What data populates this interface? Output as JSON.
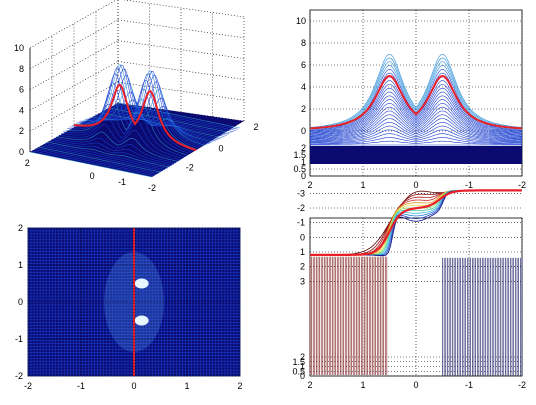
{
  "colors": {
    "surface_dark": "#0a0a70",
    "mesh_line": "#1a3fd0",
    "peak_line": "#2a8fd8",
    "red_curve": "#e8202a",
    "grid": "#000000"
  },
  "chart_data": [
    {
      "type": "surface",
      "panel": "top-left",
      "view": "3d mesh",
      "xlim": [
        -2,
        2
      ],
      "ylim": [
        -2,
        2
      ],
      "zlim": [
        0,
        10
      ],
      "x_ticks": [
        "2",
        "0",
        "-1",
        "-2"
      ],
      "y_ticks": [
        "2",
        "0",
        "-2"
      ],
      "z_ticks": [
        "0",
        "2",
        "4",
        "6",
        "8",
        "10"
      ],
      "peaks_x": [
        -0.5,
        0.5
      ],
      "peak_mesh_height": 7,
      "red_curve_peak": 5,
      "grid": true
    },
    {
      "type": "line",
      "panel": "top-right",
      "view": "side projection",
      "xlim": [
        2,
        -2
      ],
      "x_ticks": [
        "2",
        "1",
        "0",
        "-1",
        "-2"
      ],
      "y_ticks_upper": [
        "0",
        "2",
        "4",
        "6",
        "8",
        "10"
      ],
      "y_ticks_lower": [
        "0",
        "0.5",
        "1",
        "1.5",
        "2"
      ],
      "peaks_x": [
        -0.5,
        0.5
      ],
      "red_curve_peak": 5,
      "mesh_peak": 7,
      "grid": true
    },
    {
      "type": "heatmap",
      "panel": "bottom-left",
      "view": "top projection",
      "xlim": [
        -2,
        2
      ],
      "ylim": [
        -2,
        2
      ],
      "x_ticks": [
        "-2",
        "-1",
        "0",
        "1",
        "2"
      ],
      "y_ticks": [
        "2",
        "1",
        "0",
        "-1",
        "-2"
      ],
      "hot_spots": [
        [
          0.05,
          0.5
        ],
        [
          0.05,
          -0.5
        ]
      ],
      "red_line_x": 0,
      "grid": true
    },
    {
      "type": "line",
      "panel": "bottom-right",
      "view": "phase projection",
      "xlim": [
        2,
        -2
      ],
      "x_ticks": [
        "2",
        "1",
        "0",
        "-1",
        "-2"
      ],
      "y_ticks_upper": [
        "3",
        "2",
        "1",
        "0",
        "-1",
        "-2",
        "-3"
      ],
      "y_ticks_lower": [
        "0",
        "0.5",
        "1",
        "1.5",
        "2"
      ],
      "red_curve_levels": [
        1.2,
        -2.0,
        -3.2
      ],
      "grid": true
    }
  ]
}
